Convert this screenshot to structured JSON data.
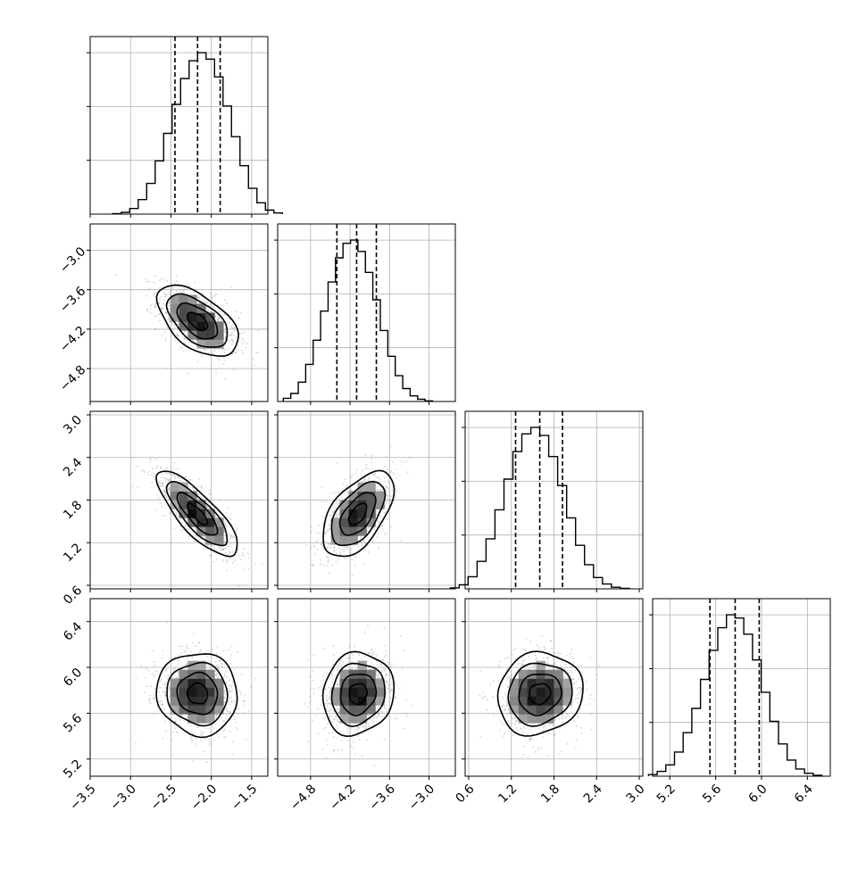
{
  "chart_data": {
    "type": "corner",
    "params": [
      {
        "range": [
          -3.5,
          -1.3
        ],
        "ticks": [
          -3.5,
          -3.0,
          -2.5,
          -2.0,
          -1.5
        ],
        "tick_labels": [
          "−3.5",
          "−3.0",
          "−2.5",
          "−2.0",
          "−1.5"
        ],
        "mean": -2.17,
        "sd": 0.25,
        "quantiles": [
          -2.45,
          -2.17,
          -1.89
        ]
      },
      {
        "range": [
          -5.3,
          -2.6
        ],
        "ticks": [
          -4.8,
          -4.2,
          -3.6,
          -3.0
        ],
        "tick_labels": [
          "−4.8",
          "−4.2",
          "−3.6",
          "−3.0"
        ],
        "mean": -4.08,
        "sd": 0.27,
        "quantiles": [
          -4.4,
          -4.1,
          -3.8
        ]
      },
      {
        "range": [
          0.55,
          3.05
        ],
        "ticks": [
          0.6,
          1.2,
          1.8,
          2.4,
          3.0
        ],
        "tick_labels": [
          "0.6",
          "1.2",
          "1.8",
          "2.4",
          "3.0"
        ],
        "mean": 1.6,
        "sd": 0.3,
        "quantiles": [
          1.26,
          1.6,
          1.92
        ]
      },
      {
        "range": [
          5.05,
          6.6
        ],
        "ticks": [
          5.2,
          5.6,
          6.0,
          6.4
        ],
        "tick_labels": [
          "5.2",
          "5.6",
          "6.0",
          "6.4"
        ],
        "mean": 5.77,
        "sd": 0.18,
        "quantiles": [
          5.55,
          5.77,
          5.98
        ]
      }
    ],
    "correlations": [
      {
        "pair": [
          0,
          1
        ],
        "rho": -0.55
      },
      {
        "pair": [
          0,
          2
        ],
        "rho": -0.8
      },
      {
        "pair": [
          1,
          2
        ],
        "rho": 0.55
      },
      {
        "pair": [
          0,
          3
        ],
        "rho": -0.05
      },
      {
        "pair": [
          1,
          3
        ],
        "rho": 0.1
      },
      {
        "pair": [
          2,
          3
        ],
        "rho": 0.1
      }
    ],
    "histograms": [
      {
        "param": 0,
        "bins": 20,
        "max_tick_count": 3,
        "counts": [
          0.003,
          0.011,
          0.035,
          0.09,
          0.19,
          0.33,
          0.5,
          0.68,
          0.84,
          0.95,
          1.0,
          0.96,
          0.85,
          0.67,
          0.48,
          0.3,
          0.16,
          0.07,
          0.025,
          0.007
        ]
      },
      {
        "param": 1,
        "bins": 20,
        "max_tick_count": 3,
        "counts": [
          0.02,
          0.05,
          0.12,
          0.23,
          0.38,
          0.56,
          0.74,
          0.89,
          0.98,
          1.0,
          0.93,
          0.8,
          0.63,
          0.44,
          0.28,
          0.16,
          0.08,
          0.035,
          0.014,
          0.004
        ]
      },
      {
        "param": 2,
        "bins": 20,
        "max_tick_count": 3,
        "counts": [
          0.006,
          0.025,
          0.075,
          0.17,
          0.31,
          0.49,
          0.68,
          0.85,
          0.96,
          1.0,
          0.95,
          0.82,
          0.64,
          0.44,
          0.27,
          0.15,
          0.07,
          0.03,
          0.01,
          0.003
        ]
      },
      {
        "param": 3,
        "bins": 20,
        "max_tick_count": 3,
        "counts": [
          0.01,
          0.03,
          0.07,
          0.15,
          0.27,
          0.42,
          0.6,
          0.78,
          0.92,
          1.0,
          0.98,
          0.88,
          0.72,
          0.52,
          0.34,
          0.2,
          0.1,
          0.045,
          0.018,
          0.006
        ]
      }
    ],
    "contour_levels_sigma": [
      0.5,
      1.0,
      1.5,
      2.0
    ],
    "scatter_points_per_panel": 900,
    "density_bins": 20,
    "grid": true,
    "quantile_line_style": "dashed",
    "colors": {
      "frame": "#000000",
      "grid": "#b0b0b0",
      "points": "#8a8a8a",
      "density": "#000000",
      "contour": "#000000",
      "background": "#ffffff"
    }
  }
}
